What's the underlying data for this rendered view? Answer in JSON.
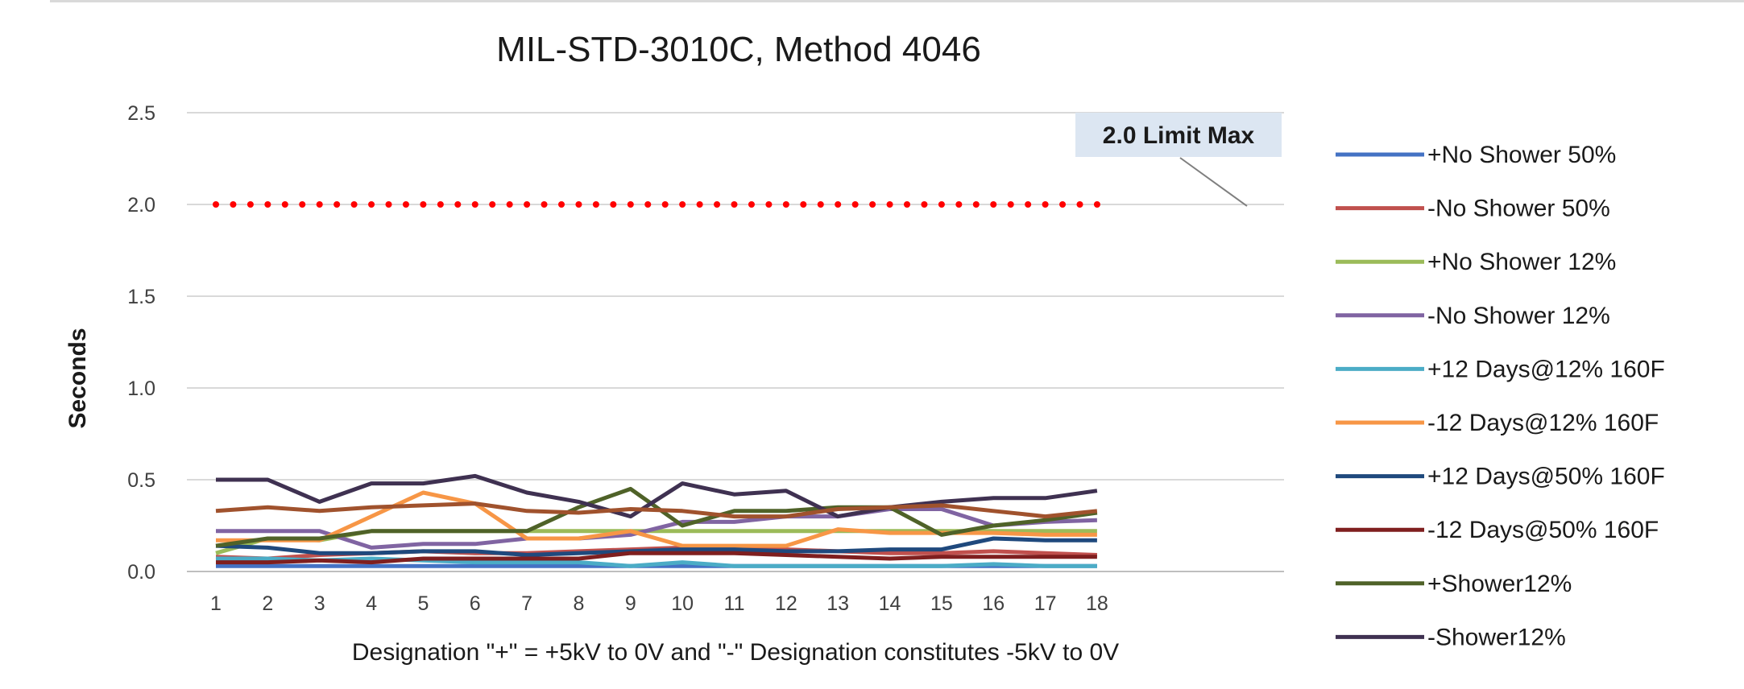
{
  "chart_data": {
    "type": "line",
    "title": "MIL-STD-3010C, Method 4046",
    "xlabel": "Designation \"+\" = +5kV to 0V and  \"-\" Designation constitutes -5kV to 0V",
    "ylabel": "Seconds",
    "x": [
      1,
      2,
      3,
      4,
      5,
      6,
      7,
      8,
      9,
      10,
      11,
      12,
      13,
      14,
      15,
      16,
      17,
      18
    ],
    "ylim": [
      0,
      2.5
    ],
    "yticks": [
      "0.0",
      "0.5",
      "1.0",
      "1.5",
      "2.0",
      "2.5"
    ],
    "grid": true,
    "legend_position": "right",
    "limit_line": {
      "label": "2.0 Limit Max",
      "value": 2.0,
      "color": "#ff0000"
    },
    "series": [
      {
        "name": "+No Shower 50%",
        "color": "#4472c4",
        "values": [
          0.03,
          0.03,
          0.03,
          0.03,
          0.03,
          0.03,
          0.03,
          0.03,
          0.03,
          0.03,
          0.03,
          0.03,
          0.03,
          0.03,
          0.03,
          0.03,
          0.03,
          0.03
        ]
      },
      {
        "name": "-No Shower 50%",
        "color": "#c0504d",
        "values": [
          0.08,
          0.07,
          0.09,
          0.1,
          0.11,
          0.1,
          0.1,
          0.11,
          0.12,
          0.13,
          0.12,
          0.12,
          0.11,
          0.1,
          0.1,
          0.11,
          0.1,
          0.09
        ]
      },
      {
        "name": "+No Shower 12%",
        "color": "#9bbb59",
        "values": [
          0.1,
          0.18,
          0.17,
          0.22,
          0.22,
          0.22,
          0.22,
          0.22,
          0.22,
          0.22,
          0.22,
          0.22,
          0.22,
          0.22,
          0.22,
          0.22,
          0.22,
          0.22
        ]
      },
      {
        "name": "-No Shower 12%",
        "color": "#8064a2",
        "values": [
          0.22,
          0.22,
          0.22,
          0.13,
          0.15,
          0.15,
          0.18,
          0.18,
          0.2,
          0.27,
          0.27,
          0.3,
          0.3,
          0.34,
          0.34,
          0.25,
          0.27,
          0.28
        ]
      },
      {
        "name": "+12 Days@12% 160F",
        "color": "#4bacc6",
        "values": [
          0.07,
          0.07,
          0.06,
          0.07,
          0.06,
          0.05,
          0.05,
          0.05,
          0.03,
          0.05,
          0.03,
          0.03,
          0.03,
          0.03,
          0.03,
          0.04,
          0.03,
          0.03
        ]
      },
      {
        "name": "-12 Days@12% 160F",
        "color": "#f79646",
        "values": [
          0.17,
          0.17,
          0.17,
          0.3,
          0.43,
          0.37,
          0.18,
          0.18,
          0.22,
          0.14,
          0.14,
          0.14,
          0.23,
          0.21,
          0.21,
          0.21,
          0.2,
          0.2
        ]
      },
      {
        "name": "+12 Days@50% 160F",
        "color": "#1f497d",
        "values": [
          0.14,
          0.13,
          0.1,
          0.1,
          0.11,
          0.11,
          0.09,
          0.1,
          0.11,
          0.12,
          0.12,
          0.11,
          0.11,
          0.12,
          0.12,
          0.18,
          0.17,
          0.17
        ]
      },
      {
        "name": "-12 Days@50% 160F",
        "color": "#7f1f1f",
        "values": [
          0.05,
          0.05,
          0.06,
          0.05,
          0.07,
          0.07,
          0.07,
          0.07,
          0.1,
          0.1,
          0.1,
          0.09,
          0.08,
          0.07,
          0.08,
          0.08,
          0.08,
          0.08
        ]
      },
      {
        "name": "+Shower12%",
        "color": "#4f6228",
        "values": [
          0.14,
          0.18,
          0.18,
          0.22,
          0.22,
          0.22,
          0.22,
          0.35,
          0.45,
          0.25,
          0.33,
          0.33,
          0.35,
          0.35,
          0.2,
          0.25,
          0.28,
          0.32
        ]
      },
      {
        "name": "-Shower12%",
        "color": "#3f3151",
        "values": [
          0.5,
          0.5,
          0.38,
          0.48,
          0.48,
          0.52,
          0.43,
          0.38,
          0.3,
          0.48,
          0.42,
          0.44,
          0.3,
          0.35,
          0.38,
          0.4,
          0.4,
          0.44
        ]
      },
      {
        "name": "",
        "color": "#a0522d",
        "values": [
          0.33,
          0.35,
          0.33,
          0.35,
          0.36,
          0.37,
          0.33,
          0.32,
          0.34,
          0.33,
          0.3,
          0.3,
          0.34,
          0.35,
          0.36,
          0.33,
          0.3,
          0.33
        ]
      }
    ]
  }
}
